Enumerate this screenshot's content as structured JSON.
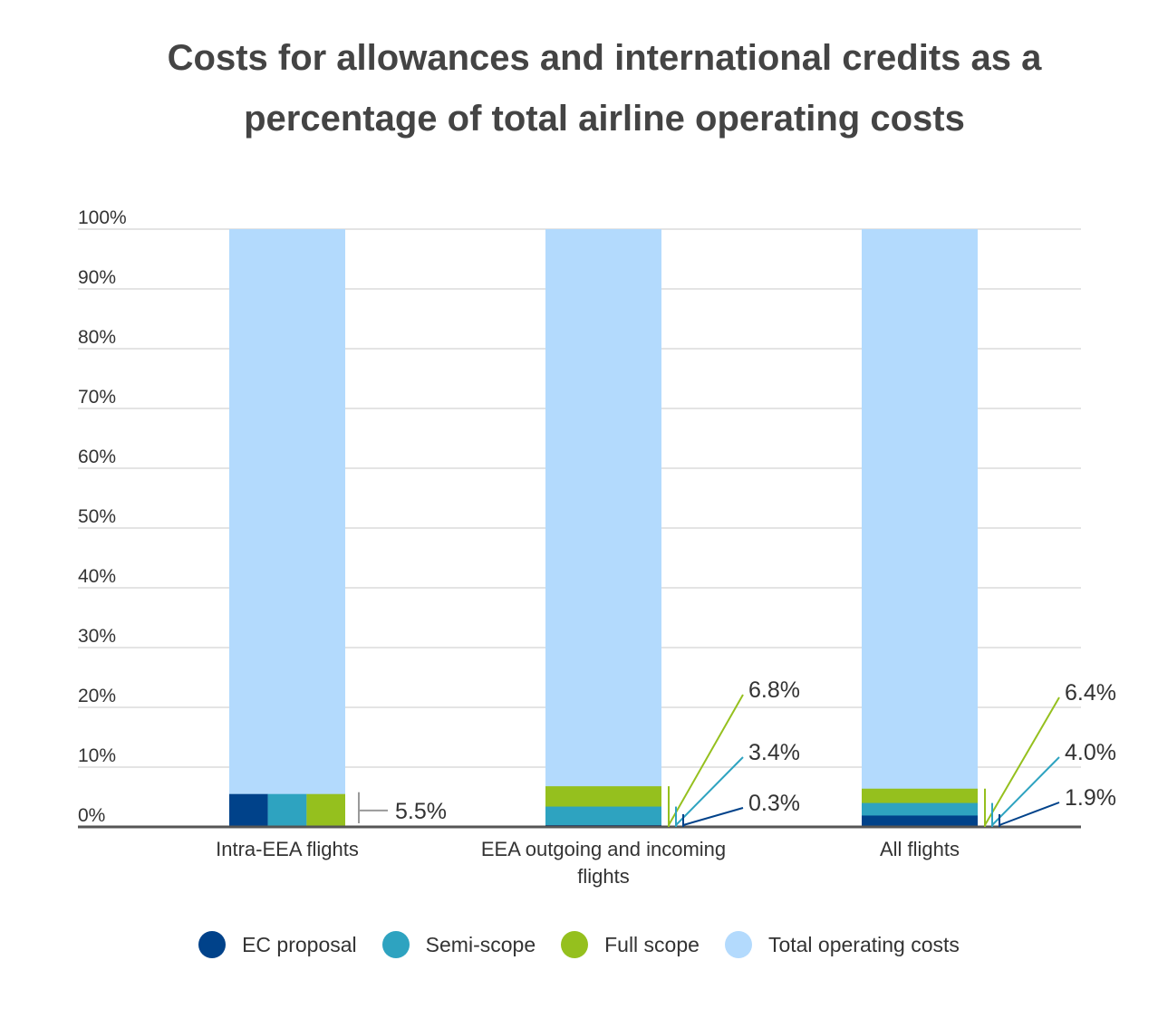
{
  "chart_data": {
    "type": "bar",
    "title_lines": [
      "Costs for allowances and international credits as a",
      "percentage of total airline operating costs"
    ],
    "categories": [
      "Intra-EEA flights",
      "EEA outgoing and incoming flights",
      "All flights"
    ],
    "series": [
      {
        "name": "EC proposal",
        "color": "#00428A",
        "values": [
          5.5,
          0.3,
          1.9
        ]
      },
      {
        "name": "Semi-scope",
        "color": "#2EA3C0",
        "values": [
          5.5,
          3.4,
          4.0
        ]
      },
      {
        "name": "Full scope",
        "color": "#95C01E",
        "values": [
          5.5,
          6.8,
          6.4
        ]
      },
      {
        "name": "Total operating costs",
        "color": "#B3DAFD",
        "values": [
          100,
          100,
          100
        ]
      }
    ],
    "data_labels": [
      [
        "5.5%"
      ],
      [
        "6.8%",
        "3.4%",
        "0.3%"
      ],
      [
        "6.4%",
        "4.0%",
        "1.9%"
      ]
    ],
    "y_ticks": [
      "0%",
      "10%",
      "20%",
      "30%",
      "40%",
      "50%",
      "60%",
      "70%",
      "80%",
      "90%",
      "100%"
    ],
    "ylim": [
      0,
      100
    ],
    "grid": true,
    "legend_position": "bottom"
  }
}
